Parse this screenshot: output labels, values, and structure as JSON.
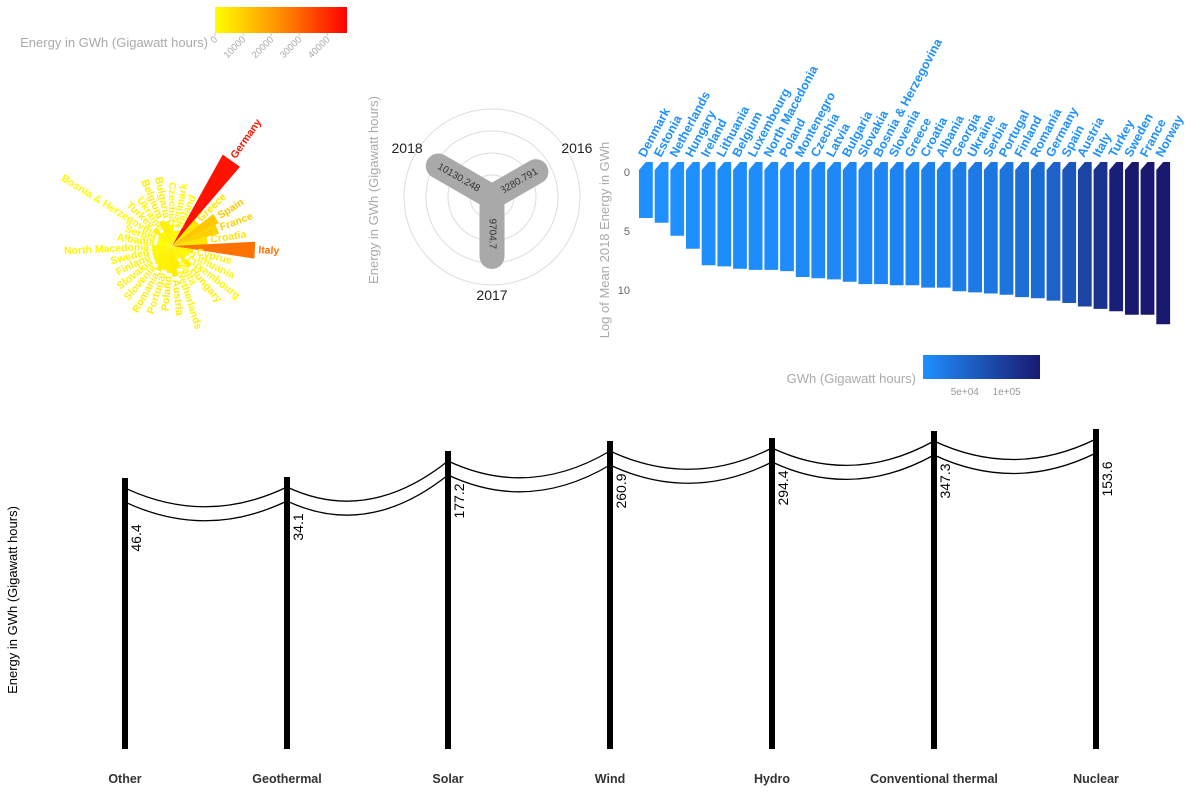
{
  "chart_data": [
    {
      "type": "bar",
      "subtype": "radial",
      "legend": {
        "title": "Energy in GWh (Gigawatt hours)",
        "ticks": [
          "0",
          "10000",
          "20000",
          "30000",
          "40000"
        ],
        "placement": "top",
        "colors": {
          "low": "#ffff00",
          "mid": "#ff8c00",
          "high": "#ff0000"
        },
        "range": [
          0,
          47000
        ]
      },
      "categories": [
        "Germany",
        "Greece",
        "Spain",
        "France",
        "Croatia",
        "Italy",
        "Cyprus",
        "Lithuania",
        "Luxembourg",
        "Hungary",
        "Malta",
        "Netherlands",
        "Austria",
        "Poland",
        "Portugal",
        "Romania",
        "Slovenia",
        "Slovakia",
        "Finland",
        "Sweden",
        "North Macedonia",
        "Albania",
        "Serbia",
        "Bosnia & Herzegovina",
        "Turkey",
        "Ukraine",
        "Belgium",
        "Bulgaria",
        "Czechia",
        "Denmark",
        "Ireland"
      ],
      "values": [
        44000,
        4800,
        11000,
        9500,
        5200,
        28000,
        2000,
        1500,
        1200,
        3000,
        800,
        2200,
        3800,
        3000,
        2600,
        3200,
        2300,
        2000,
        1800,
        1700,
        1600,
        900,
        900,
        1000,
        2400,
        1100,
        3000,
        2600,
        1800,
        1000,
        1200
      ]
    },
    {
      "type": "bar",
      "subtype": "radial",
      "ylabel": "Energy in GWh (Gigawatt hours)",
      "categories": [
        "2016",
        "2017",
        "2018"
      ],
      "values": [
        8280.791,
        9704.7,
        10130.248
      ],
      "grid": true,
      "bar_color": "#a9a9a9"
    },
    {
      "type": "bar",
      "ylabel": "Log of Mean 2018 Energy in GWh",
      "yticks": [
        "0",
        "5",
        "10"
      ],
      "ylim": [
        0,
        13
      ],
      "legend": {
        "title": "GWh (Gigawatt hours)",
        "ticks": [
          "5e+04",
          "1e+05"
        ],
        "placement": "bottom",
        "colors": {
          "low": "#1e90ff",
          "high": "#191970"
        },
        "range": [
          0,
          140000
        ]
      },
      "categories": [
        "Denmark",
        "Estonia",
        "Netherlands",
        "Hungary",
        "Ireland",
        "Lithuania",
        "Belgium",
        "Luxembourg",
        "North Macedonia",
        "Poland",
        "Montenegro",
        "Czechia",
        "Latvia",
        "Bulgaria",
        "Slovakia",
        "Bosnia & Herzegovina",
        "Slovenia",
        "Greece",
        "Croatia",
        "Albania",
        "Georgia",
        "Ukraine",
        "Serbia",
        "Portugal",
        "Finland",
        "Romania",
        "Germany",
        "Spain",
        "Austria",
        "Italy",
        "Turkey",
        "Sweden",
        "France",
        "Norway"
      ],
      "values": [
        3.9,
        4.3,
        5.4,
        6.5,
        7.9,
        8.0,
        8.2,
        8.3,
        8.3,
        8.4,
        8.9,
        9.0,
        9.1,
        9.3,
        9.5,
        9.5,
        9.6,
        9.6,
        9.8,
        9.8,
        10.1,
        10.2,
        10.3,
        10.4,
        10.6,
        10.7,
        10.9,
        11.1,
        11.4,
        11.6,
        11.8,
        12.1,
        12.1,
        12.9
      ],
      "gwh": [
        50,
        75,
        220,
        660,
        2700,
        3000,
        3600,
        4000,
        4000,
        4400,
        7300,
        8100,
        8900,
        11000,
        13000,
        13000,
        14800,
        14800,
        18000,
        18000,
        24000,
        27000,
        30000,
        33000,
        40000,
        44000,
        54000,
        66000,
        89000,
        109000,
        133000,
        140000,
        140000,
        140000
      ]
    },
    {
      "type": "bar",
      "subtype": "pictorial",
      "ylabel": "Energy in GWh (Gigawatt hours)",
      "categories": [
        "Other",
        "Geothermal",
        "Solar",
        "Wind",
        "Hydro",
        "Conventional thermal",
        "Nuclear"
      ],
      "values": [
        46.4,
        34.1,
        177.2,
        260.9,
        294.4,
        347.3,
        153.6
      ],
      "value_labels": [
        "46.4",
        "34.1",
        "177.2",
        "260.9",
        "294.4",
        "347.3",
        "153.6"
      ]
    }
  ]
}
